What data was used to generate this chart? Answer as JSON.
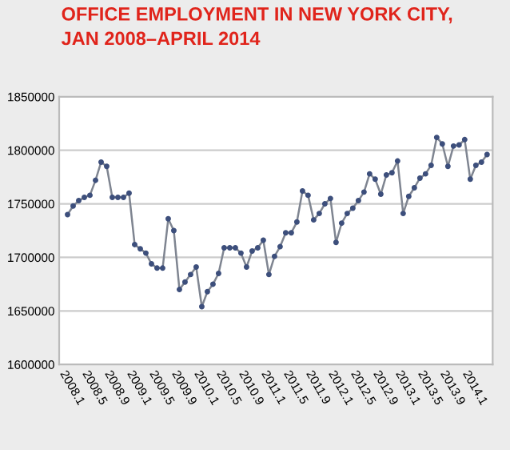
{
  "chart_data": {
    "type": "line",
    "title": "OFFICE EMPLOYMENT IN NEW YORK CITY,\nJAN 2008–APRIL 2014",
    "categories": [
      "2008.1",
      null,
      null,
      null,
      "2008.5",
      null,
      null,
      null,
      "2008.9",
      null,
      null,
      null,
      "2009.1",
      null,
      null,
      null,
      "2009.5",
      null,
      null,
      null,
      "2009.9",
      null,
      null,
      null,
      "2010.1",
      null,
      null,
      null,
      "2010.5",
      null,
      null,
      null,
      "2010.9",
      null,
      null,
      null,
      "2011.1",
      null,
      null,
      null,
      "2011.5",
      null,
      null,
      null,
      "2011.9",
      null,
      null,
      null,
      "2012.1",
      null,
      null,
      null,
      "2012.5",
      null,
      null,
      null,
      "2012.9",
      null,
      null,
      null,
      "2013.1",
      null,
      null,
      null,
      "2013.5",
      null,
      null,
      null,
      "2013.9",
      null,
      null,
      null,
      "2014.1",
      null,
      null,
      null
    ],
    "series": [
      {
        "color": "#3d4f7c",
        "values": [
          1740000,
          1748000,
          1753000,
          1756000,
          1758000,
          1772000,
          1789000,
          1785000,
          1756000,
          1756000,
          1756000,
          1760000,
          1712000,
          1708000,
          1704000,
          1694000,
          1690000,
          1690000,
          1736000,
          1725000,
          1670000,
          1677000,
          1684000,
          1691000,
          1654000,
          1668000,
          1675000,
          1685000,
          1709000,
          1709000,
          1709000,
          1704000,
          1691000,
          1706000,
          1709000,
          1716000,
          1684000,
          1701000,
          1710000,
          1723000,
          1723000,
          1733000,
          1762000,
          1758000,
          1735000,
          1741000,
          1750000,
          1755000,
          1714000,
          1732000,
          1741000,
          1746000,
          1753000,
          1761000,
          1778000,
          1773000,
          1759000,
          1777000,
          1779000,
          1790000,
          1741000,
          1757000,
          1765000,
          1774000,
          1778000,
          1786000,
          1812000,
          1806000,
          1785000,
          1804000,
          1805000,
          1810000,
          1773000,
          1786000,
          1789000,
          1796000
        ]
      }
    ],
    "ylim": [
      1600000,
      1850000
    ],
    "yticks": [
      1600000,
      1650000,
      1700000,
      1750000,
      1800000,
      1850000
    ],
    "grid": "y",
    "marker": "circle",
    "line_style": "solid",
    "legend": false
  }
}
